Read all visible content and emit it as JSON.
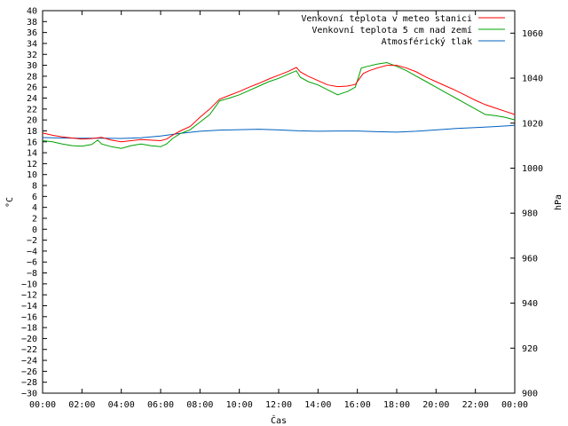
{
  "chart_data": {
    "type": "line",
    "xlabel": "Čas",
    "ylabel_left": "°C",
    "ylabel_right": "hPa",
    "x_ticks": [
      "00:00",
      "02:00",
      "04:00",
      "06:00",
      "08:00",
      "10:00",
      "12:00",
      "14:00",
      "16:00",
      "18:00",
      "20:00",
      "22:00",
      "00:00"
    ],
    "x_range_hours": [
      0,
      24
    ],
    "y_left_range": [
      -30,
      40
    ],
    "y_left_step": 2,
    "y_right_range": [
      900,
      1070
    ],
    "y_right_ticks": [
      900,
      920,
      940,
      960,
      980,
      1000,
      1020,
      1040,
      1060
    ],
    "grid": false,
    "legend_position": "top-right",
    "series": [
      {
        "name": "Venkovní teplota v meteo stanici",
        "color": "#ff0000",
        "axis": "left",
        "x": [
          0,
          0.5,
          1,
          1.5,
          2,
          2.5,
          3,
          3.5,
          4,
          4.5,
          5,
          5.5,
          6,
          6.3,
          6.6,
          7,
          7.5,
          8,
          8.5,
          9,
          9.5,
          10,
          10.5,
          11,
          11.5,
          12,
          12.5,
          12.9,
          13.1,
          13.5,
          14,
          14.5,
          15,
          15.5,
          15.9,
          16.3,
          16.6,
          17,
          17.5,
          18,
          18.5,
          19,
          19.5,
          20,
          20.5,
          21,
          21.5,
          22,
          22.5,
          23,
          23.5,
          24
        ],
        "y": [
          17.6,
          17.2,
          16.9,
          16.7,
          16.5,
          16.6,
          16.8,
          16.3,
          16.0,
          16.2,
          16.4,
          16.3,
          16.2,
          16.5,
          17.2,
          18.0,
          18.8,
          20.5,
          22.0,
          23.8,
          24.5,
          25.2,
          26.0,
          26.7,
          27.5,
          28.2,
          28.9,
          29.6,
          28.8,
          28.0,
          27.2,
          26.4,
          26.1,
          26.2,
          26.5,
          28.5,
          29.0,
          29.5,
          30.0,
          30.0,
          29.5,
          28.8,
          27.8,
          27.0,
          26.2,
          25.4,
          24.5,
          23.6,
          22.8,
          22.2,
          21.6,
          21.0
        ]
      },
      {
        "name": "Venkovní teplota 5 cm nad zemí",
        "color": "#00a000",
        "axis": "left",
        "x": [
          0,
          0.5,
          1,
          1.5,
          2,
          2.5,
          2.8,
          3,
          3.5,
          4,
          4.5,
          5,
          5.5,
          6,
          6.3,
          6.6,
          7,
          7.5,
          8,
          8.5,
          9,
          9.5,
          10,
          10.5,
          11,
          11.5,
          12,
          12.5,
          12.9,
          13.1,
          13.5,
          14,
          14.5,
          15,
          15.5,
          15.9,
          16.2,
          16.5,
          17,
          17.5,
          18,
          18.5,
          19,
          19.5,
          20,
          20.5,
          21,
          21.5,
          22,
          22.5,
          23,
          23.5,
          24
        ],
        "y": [
          16.2,
          16.0,
          15.6,
          15.3,
          15.2,
          15.5,
          16.3,
          15.6,
          15.1,
          14.8,
          15.3,
          15.6,
          15.3,
          15.1,
          15.6,
          16.6,
          17.5,
          18.2,
          19.6,
          21.0,
          23.5,
          24.0,
          24.6,
          25.4,
          26.2,
          27.0,
          27.6,
          28.4,
          29.0,
          27.8,
          27.0,
          26.4,
          25.5,
          24.6,
          25.2,
          26.0,
          29.5,
          29.8,
          30.2,
          30.5,
          29.8,
          29.0,
          28.0,
          27.0,
          26.0,
          25.0,
          24.0,
          23.0,
          22.0,
          21.0,
          20.8,
          20.5,
          20.0
        ]
      },
      {
        "name": "Atmosférický tlak",
        "color": "#0060c0",
        "axis": "right",
        "x": [
          0,
          1,
          2,
          3,
          4,
          5,
          6,
          7,
          8,
          9,
          10,
          11,
          12,
          13,
          14,
          15,
          16,
          17,
          18,
          19,
          20,
          21,
          22,
          23,
          24
        ],
        "y": [
          1013.6,
          1013.4,
          1013.3,
          1013.3,
          1013.2,
          1013.5,
          1014.3,
          1015.5,
          1016.4,
          1016.9,
          1017.1,
          1017.3,
          1017.0,
          1016.6,
          1016.4,
          1016.5,
          1016.5,
          1016.2,
          1016.0,
          1016.4,
          1017.0,
          1017.6,
          1018.0,
          1018.5,
          1019.0
        ]
      }
    ]
  }
}
